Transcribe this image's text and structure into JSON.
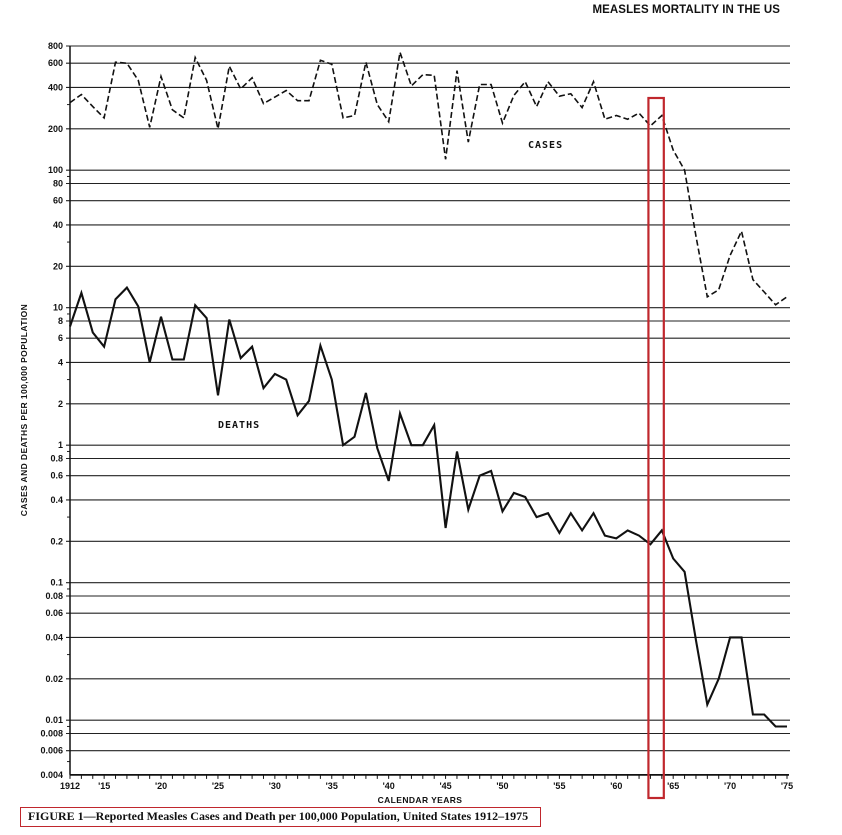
{
  "page": {
    "title": "MEASLES MORTALITY IN THE US",
    "caption": "FIGURE 1—Reported Measles Cases and Death per 100,000 Population, United States 1912–1975",
    "highlight_color": "#c0272d",
    "highlight_years": [
      1963,
      1964
    ]
  },
  "chart_data": {
    "type": "line",
    "title": "MEASLES MORTALITY IN THE US",
    "xlabel": "CALENDAR YEARS",
    "ylabel": "CASES AND DEATHS PER 100,000 POPULATION",
    "yscale": "log",
    "ylim": [
      0.004,
      800
    ],
    "xlim": [
      1912,
      1975
    ],
    "grid": true,
    "y_ticks": [
      "800",
      "600",
      "400",
      "200",
      "100",
      "80",
      "60",
      "40",
      "20",
      "10",
      "8",
      "6",
      "4",
      "2",
      "1",
      "0.8",
      "0.6",
      "0.4",
      "0.2",
      "0.1",
      "0.08",
      "0.06",
      "0.04",
      "0.02",
      "0.01",
      "0.008",
      "0.006",
      "0.004"
    ],
    "y_tick_values": [
      800,
      600,
      400,
      200,
      100,
      80,
      60,
      40,
      20,
      10,
      8,
      6,
      4,
      2,
      1,
      0.8,
      0.6,
      0.4,
      0.2,
      0.1,
      0.08,
      0.06,
      0.04,
      0.02,
      0.01,
      0.008,
      0.006,
      0.004
    ],
    "x_ticks": [
      "1912",
      "'15",
      "'20",
      "'25",
      "'30",
      "'35",
      "'40",
      "'45",
      "'50",
      "'55",
      "'60",
      "'65",
      "'70",
      "'75"
    ],
    "x_tick_values": [
      1912,
      1915,
      1920,
      1925,
      1930,
      1935,
      1940,
      1945,
      1950,
      1955,
      1960,
      1965,
      1970,
      1975
    ],
    "x": [
      1912,
      1913,
      1914,
      1915,
      1916,
      1917,
      1918,
      1919,
      1920,
      1921,
      1922,
      1923,
      1924,
      1925,
      1926,
      1927,
      1928,
      1929,
      1930,
      1931,
      1932,
      1933,
      1934,
      1935,
      1936,
      1937,
      1938,
      1939,
      1940,
      1941,
      1942,
      1943,
      1944,
      1945,
      1946,
      1947,
      1948,
      1949,
      1950,
      1951,
      1952,
      1953,
      1954,
      1955,
      1956,
      1957,
      1958,
      1959,
      1960,
      1961,
      1962,
      1963,
      1964,
      1965,
      1966,
      1967,
      1968,
      1969,
      1970,
      1971,
      1972,
      1973,
      1974,
      1975
    ],
    "series": [
      {
        "name": "CASES",
        "style": "dashed",
        "values": [
          310,
          355,
          290,
          240,
          610,
          600,
          450,
          205,
          480,
          275,
          240,
          660,
          450,
          200,
          570,
          390,
          470,
          305,
          340,
          380,
          320,
          320,
          630,
          590,
          240,
          250,
          610,
          300,
          225,
          720,
          410,
          495,
          490,
          120,
          530,
          160,
          420,
          420,
          220,
          350,
          440,
          290,
          440,
          345,
          360,
          285,
          440,
          235,
          250,
          235,
          260,
          210,
          250,
          140,
          100,
          33,
          12,
          13.5,
          24,
          36,
          16,
          13,
          10.5,
          12
        ]
      },
      {
        "name": "DEATHS",
        "style": "solid",
        "values": [
          7.3,
          12.8,
          6.6,
          5.2,
          11.5,
          14.0,
          10.2,
          4.0,
          8.6,
          4.2,
          4.2,
          10.4,
          8.4,
          2.3,
          8.2,
          4.3,
          5.2,
          2.6,
          3.3,
          3.0,
          1.65,
          2.1,
          5.3,
          3.0,
          1.0,
          1.15,
          2.4,
          0.95,
          0.55,
          1.7,
          1.0,
          1.0,
          1.4,
          0.25,
          0.9,
          0.34,
          0.6,
          0.65,
          0.33,
          0.45,
          0.42,
          0.3,
          0.32,
          0.23,
          0.32,
          0.24,
          0.32,
          0.22,
          0.21,
          0.24,
          0.22,
          0.19,
          0.24,
          0.15,
          0.12,
          0.038,
          0.013,
          0.02,
          0.04,
          0.04,
          0.011,
          0.011,
          0.009,
          0.009
        ]
      }
    ],
    "annotations": [
      {
        "text": "CASES",
        "x": 1956,
        "y": 150
      },
      {
        "text": "DEATHS",
        "x": 1927,
        "y": 1.3
      },
      {
        "text": "red highlight box",
        "x_range": [
          1963,
          1964
        ]
      }
    ]
  }
}
